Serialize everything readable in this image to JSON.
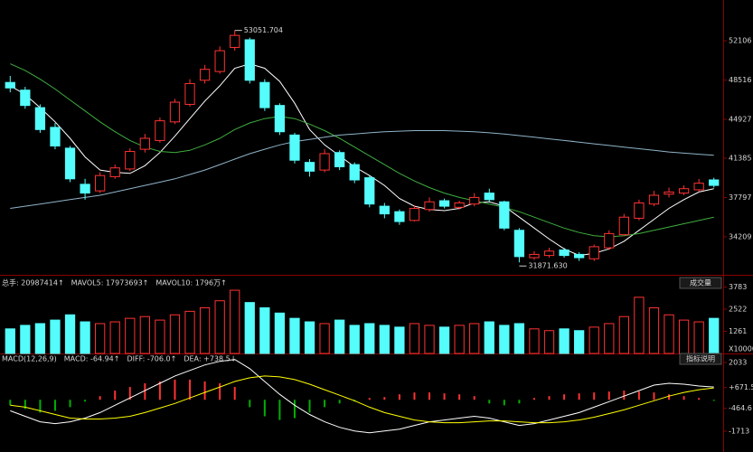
{
  "chart_data": [
    {
      "type": "candlestick",
      "open": [
        48300,
        47600,
        46000,
        44200,
        42300,
        39000,
        38400,
        39700,
        40400,
        42200,
        43000,
        44700,
        46300,
        48500,
        49300,
        51500,
        52200,
        48300,
        46200,
        43500,
        41000,
        40300,
        41900,
        40800,
        39600,
        37000,
        36500,
        35700,
        36700,
        37500,
        36900,
        37200,
        38200,
        37400,
        34800,
        32300,
        32500,
        33000,
        32600,
        32200,
        33200,
        34400,
        35900,
        37200,
        38100,
        38200,
        38500,
        39400
      ],
      "high": [
        48900,
        47900,
        46300,
        44600,
        42500,
        39500,
        40100,
        40800,
        42300,
        43600,
        45100,
        46800,
        48600,
        49900,
        51600,
        53051.704,
        52400,
        48600,
        46400,
        43700,
        41300,
        42200,
        42100,
        41000,
        39800,
        37300,
        36700,
        37100,
        37800,
        37700,
        37500,
        38200,
        38600,
        37500,
        35000,
        32900,
        33200,
        33200,
        32800,
        33500,
        34800,
        36300,
        37600,
        38400,
        38700,
        38900,
        39500,
        39600
      ],
      "low": [
        47400,
        45900,
        43700,
        42200,
        39200,
        37600,
        38200,
        39500,
        40200,
        41900,
        42800,
        44500,
        46100,
        48200,
        49100,
        51200,
        48200,
        45700,
        43500,
        40900,
        39700,
        40100,
        40300,
        39100,
        36900,
        35900,
        35300,
        35600,
        36500,
        36800,
        36700,
        37000,
        37400,
        34800,
        31871.63,
        32100,
        32300,
        32300,
        32000,
        32000,
        33000,
        34300,
        35700,
        37000,
        37800,
        38000,
        38300,
        38700
      ],
      "close": [
        47800,
        46200,
        44000,
        42500,
        39500,
        38200,
        39800,
        40500,
        42000,
        43200,
        44800,
        46500,
        48200,
        49500,
        51200,
        52600,
        48500,
        46000,
        43800,
        41200,
        40200,
        41800,
        40600,
        39400,
        37200,
        36300,
        35600,
        36800,
        37400,
        37000,
        37300,
        37800,
        37600,
        35000,
        32400,
        32600,
        32900,
        32500,
        32300,
        33300,
        34500,
        36000,
        37300,
        38000,
        38300,
        38600,
        39100,
        38900
      ],
      "up_color": "#ff3232",
      "down_color": "#54fcfc",
      "ylim": [
        30900,
        55830
      ],
      "yticks": [
        52106,
        48516,
        44927,
        41385,
        37797,
        34209
      ],
      "max_label": "53051.704",
      "min_label": "31871.630",
      "moving_averages": [
        {
          "color": "#ffffff",
          "values": [
            48000,
            47200,
            46000,
            44700,
            43200,
            41500,
            40300,
            40100,
            40000,
            40700,
            41900,
            43400,
            45000,
            46600,
            48000,
            49600,
            50000,
            49600,
            48400,
            46400,
            44000,
            42600,
            41600,
            40600,
            39800,
            38900,
            37700,
            37000,
            36700,
            36600,
            36800,
            37300,
            37400,
            37000,
            36000,
            35000,
            34000,
            33100,
            32500,
            32700,
            33100,
            33800,
            34800,
            35800,
            36800,
            37600,
            38300,
            38600
          ]
        },
        {
          "color": "#3fae3f",
          "values": [
            50000,
            49400,
            48600,
            47700,
            46700,
            45700,
            44700,
            43800,
            43000,
            42400,
            42000,
            41900,
            42100,
            42600,
            43200,
            44000,
            44600,
            45000,
            45200,
            45000,
            44500,
            43900,
            43200,
            42400,
            41600,
            40800,
            40000,
            39300,
            38700,
            38200,
            37800,
            37500,
            37200,
            36900,
            36500,
            36000,
            35500,
            35000,
            34600,
            34300,
            34200,
            34300,
            34500,
            34800,
            35100,
            35400,
            35700,
            36000
          ]
        },
        {
          "color": "#8fb4c8",
          "values": [
            36800,
            37000,
            37200,
            37400,
            37600,
            37800,
            38000,
            38300,
            38600,
            38900,
            39200,
            39500,
            39900,
            40300,
            40800,
            41300,
            41800,
            42200,
            42600,
            42900,
            43100,
            43300,
            43500,
            43600,
            43700,
            43800,
            43850,
            43900,
            43900,
            43900,
            43850,
            43800,
            43700,
            43600,
            43450,
            43300,
            43150,
            43000,
            42850,
            42700,
            42550,
            42400,
            42250,
            42100,
            41950,
            41850,
            41750,
            41650
          ]
        }
      ]
    },
    {
      "type": "volume",
      "legend": [
        {
          "text": "总手: 20987414↑",
          "color": "#ffffff"
        },
        {
          "text": "MAVOL5: 17973693↑",
          "color": "#ffff00"
        },
        {
          "text": "MAVOL10: 1796万↑",
          "color": "#ff80ff"
        }
      ],
      "button": "成交量",
      "values": [
        1400,
        1600,
        1700,
        1900,
        2200,
        1800,
        1700,
        1800,
        2000,
        2100,
        1900,
        2200,
        2400,
        2600,
        3000,
        3600,
        2900,
        2600,
        2300,
        2000,
        1800,
        1700,
        1900,
        1600,
        1700,
        1600,
        1500,
        1700,
        1600,
        1500,
        1600,
        1700,
        1800,
        1600,
        1700,
        1400,
        1300,
        1400,
        1300,
        1500,
        1700,
        2100,
        3200,
        2600,
        2200,
        1900,
        1800,
        2000
      ],
      "ylim": [
        0,
        4375
      ],
      "yticks": [
        1261,
        2522,
        3783
      ],
      "unit_label": "X10000"
    },
    {
      "type": "macd",
      "legend": [
        {
          "text": "MACD(12,26,9)",
          "color": "#ffffff"
        },
        {
          "text": "MACD: -64.94↑",
          "color": "#00e000"
        },
        {
          "text": "DIFF: -706.0↑",
          "color": "#ffffff"
        },
        {
          "text": "DEA: +738.5↓",
          "color": "#ffff00"
        }
      ],
      "button": "指标说明",
      "values": [
        -300,
        -500,
        -700,
        -600,
        -400,
        -100,
        200,
        500,
        700,
        900,
        1000,
        1100,
        1100,
        1000,
        900,
        700,
        -400,
        -900,
        -1100,
        -1000,
        -700,
        -400,
        -200,
        -100,
        100,
        150,
        300,
        400,
        400,
        350,
        300,
        200,
        -200,
        -300,
        -200,
        100,
        200,
        300,
        350,
        400,
        450,
        500,
        450,
        400,
        300,
        200,
        100,
        -60
      ],
      "pos_color": "#ff3232",
      "neg_color": "#00b000",
      "lines": [
        {
          "color": "#ffffff",
          "values": [
            -600,
            -900,
            -1200,
            -1300,
            -1200,
            -1000,
            -700,
            -300,
            100,
            500,
            900,
            1300,
            1600,
            1900,
            2100,
            2200,
            1700,
            1000,
            300,
            -300,
            -800,
            -1200,
            -1500,
            -1700,
            -1800,
            -1700,
            -1600,
            -1400,
            -1200,
            -1100,
            -1000,
            -900,
            -1000,
            -1200,
            -1400,
            -1300,
            -1100,
            -900,
            -700,
            -400,
            -100,
            200,
            500,
            800,
            900,
            850,
            750,
            700
          ]
        },
        {
          "color": "#ffff00",
          "values": [
            -300,
            -400,
            -600,
            -800,
            -1000,
            -1050,
            -1050,
            -1000,
            -900,
            -700,
            -450,
            -200,
            100,
            400,
            700,
            1000,
            1200,
            1300,
            1250,
            1100,
            850,
            550,
            250,
            -50,
            -400,
            -700,
            -900,
            -1100,
            -1200,
            -1250,
            -1250,
            -1200,
            -1150,
            -1150,
            -1200,
            -1250,
            -1250,
            -1200,
            -1100,
            -950,
            -750,
            -550,
            -300,
            -50,
            200,
            400,
            550,
            650
          ]
        }
      ],
      "ylim": [
        -2700,
        2330
      ],
      "yticks": [
        2033,
        {
          "value": 671.5,
          "label": "+671.5"
        },
        -464.6,
        -1713
      ]
    }
  ]
}
